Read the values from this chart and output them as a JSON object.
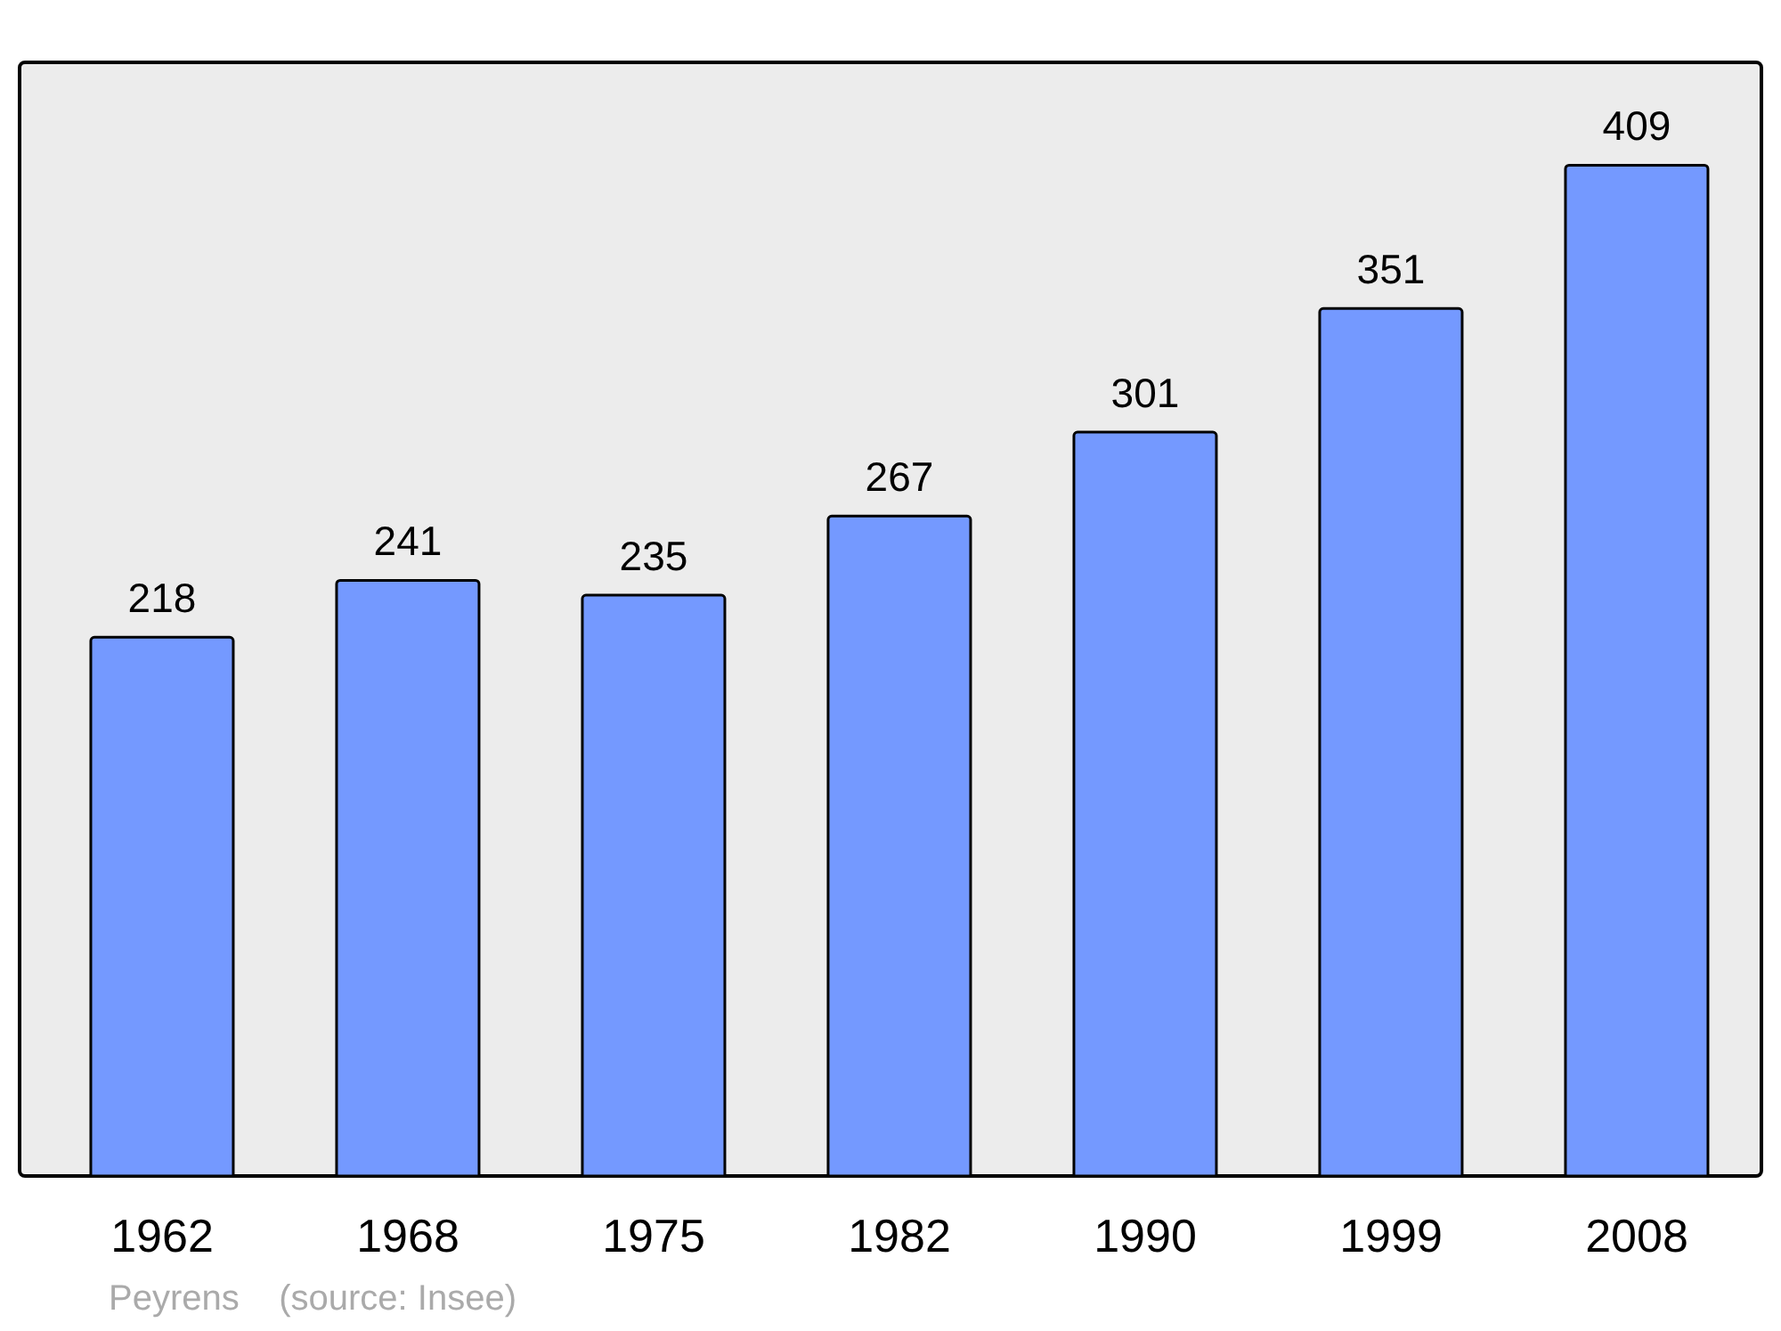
{
  "chart_data": {
    "type": "bar",
    "categories": [
      "1962",
      "1968",
      "1975",
      "1982",
      "1990",
      "1999",
      "2008"
    ],
    "values": [
      218,
      241,
      235,
      267,
      301,
      351,
      409
    ],
    "color": "#7499ff",
    "data_labels": true,
    "grid": false,
    "annotations": [
      "Peyrens    (source: Insee)"
    ]
  }
}
